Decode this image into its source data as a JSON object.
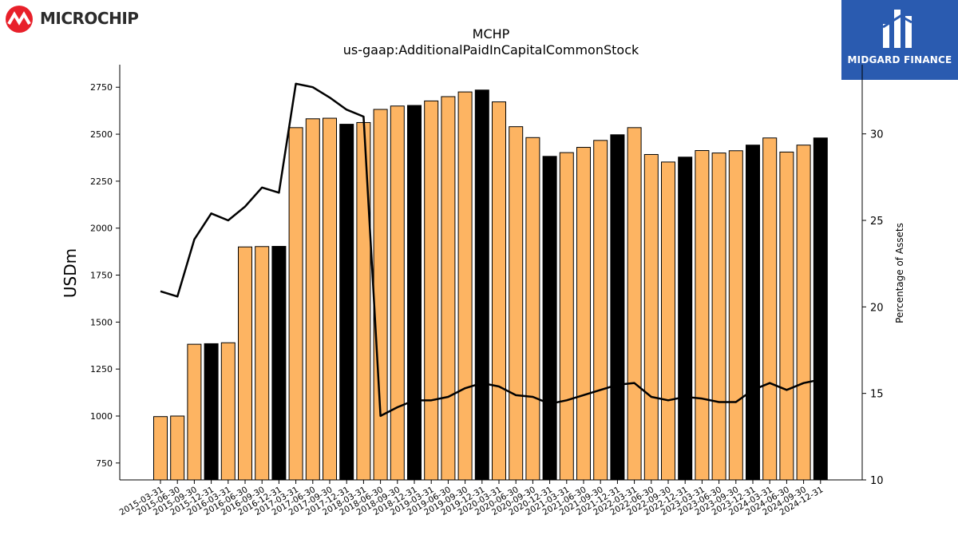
{
  "logos": {
    "left_text": "MICROCHIP",
    "right_text": "MIDGARD FINANCE"
  },
  "colors": {
    "bar_default": "#fdb462",
    "bar_highlight": "#000000",
    "line": "#000000",
    "brand_left": "#e8202a",
    "brand_right": "#2a5bb0"
  },
  "chart_data": {
    "type": "bar",
    "title": "MCHP",
    "subtitle": "us-gaap:AdditionalPaidInCapitalCommonStock",
    "ylabel": "USDm",
    "y2label": "Percentage of Assets",
    "ylim": [
      660,
      2870
    ],
    "y2lim": [
      10,
      34.0
    ],
    "yticks": [
      750,
      1000,
      1250,
      1500,
      1750,
      2000,
      2250,
      2500,
      2750
    ],
    "y2ticks": [
      10,
      15,
      20,
      25,
      30
    ],
    "categories": [
      "2015-03-31",
      "2015-06-30",
      "2015-09-30",
      "2015-12-31",
      "2016-03-31",
      "2016-06-30",
      "2016-09-30",
      "2016-12-31",
      "2017-03-31",
      "2017-06-30",
      "2017-09-30",
      "2017-12-31",
      "2018-03-31",
      "2018-06-30",
      "2018-09-30",
      "2018-12-31",
      "2019-03-31",
      "2019-06-30",
      "2019-09-30",
      "2019-12-31",
      "2020-03-31",
      "2020-06-30",
      "2020-09-30",
      "2020-12-31",
      "2021-03-31",
      "2021-06-30",
      "2021-09-30",
      "2021-12-31",
      "2022-03-31",
      "2022-06-30",
      "2022-09-30",
      "2022-12-31",
      "2023-03-31",
      "2023-06-30",
      "2023-09-30",
      "2023-12-31",
      "2024-03-31",
      "2024-06-30",
      "2024-09-30",
      "2024-12-31"
    ],
    "series": [
      {
        "type": "bar",
        "values": [
          997,
          1000,
          1382,
          1385,
          1390,
          1900,
          1902,
          1903,
          2535,
          2582,
          2585,
          2553,
          2562,
          2632,
          2650,
          2653,
          2677,
          2700,
          2725,
          2735,
          2672,
          2540,
          2482,
          2382,
          2402,
          2430,
          2467,
          2497,
          2535,
          2392,
          2352,
          2378,
          2413,
          2400,
          2412,
          2442,
          2480,
          2405,
          2442,
          2480
        ],
        "highlight": [
          false,
          false,
          false,
          true,
          false,
          false,
          false,
          true,
          false,
          false,
          false,
          true,
          false,
          false,
          false,
          true,
          false,
          false,
          false,
          true,
          false,
          false,
          false,
          true,
          false,
          false,
          false,
          true,
          false,
          false,
          false,
          true,
          false,
          false,
          false,
          true,
          false,
          false,
          false,
          true
        ]
      },
      {
        "type": "line",
        "axis": "right",
        "values": [
          20.9,
          20.6,
          23.9,
          25.4,
          25.0,
          25.8,
          26.9,
          26.6,
          32.9,
          32.7,
          32.1,
          31.4,
          31.0,
          13.7,
          14.2,
          14.6,
          14.6,
          14.8,
          15.3,
          15.6,
          15.4,
          14.9,
          14.8,
          14.4,
          14.6,
          14.9,
          15.2,
          15.5,
          15.6,
          14.8,
          14.6,
          14.8,
          14.7,
          14.5,
          14.5,
          15.2,
          15.6,
          15.2,
          15.6,
          15.8
        ]
      }
    ]
  }
}
